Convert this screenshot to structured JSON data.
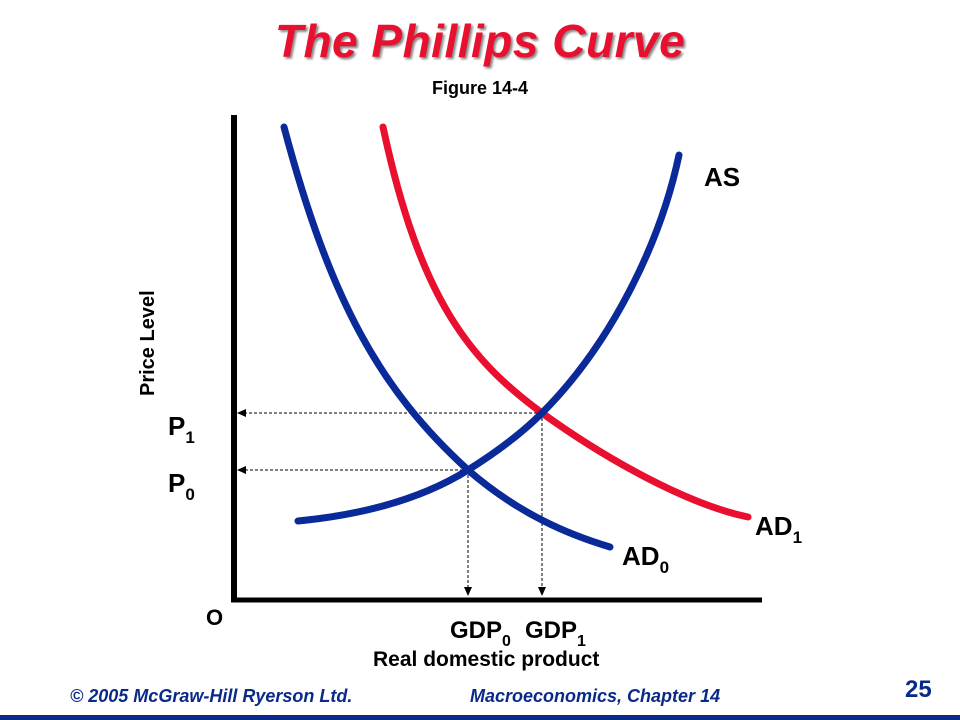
{
  "title": "The Phillips Curve",
  "subtitle": "Figure 14-4",
  "chart": {
    "y_axis_label": "Price Level",
    "x_axis_label": "Real domestic product",
    "origin_label": "O",
    "curves": {
      "as": {
        "label": "AS",
        "color": "#0a2a9a"
      },
      "ad0": {
        "label": "AD",
        "sub": "0",
        "color": "#0a2a9a"
      },
      "ad1": {
        "label": "AD",
        "sub": "1",
        "color": "#e8102e"
      }
    },
    "price_levels": [
      {
        "label": "P",
        "sub": "1"
      },
      {
        "label": "P",
        "sub": "0"
      }
    ],
    "gdp_levels": [
      {
        "label": "GDP",
        "sub": "0"
      },
      {
        "label": "GDP",
        "sub": "1"
      }
    ]
  },
  "footer": {
    "left": "© 2005 McGraw-Hill Ryerson Ltd.",
    "right": "Macroeconomics, Chapter 14",
    "page": "25"
  }
}
